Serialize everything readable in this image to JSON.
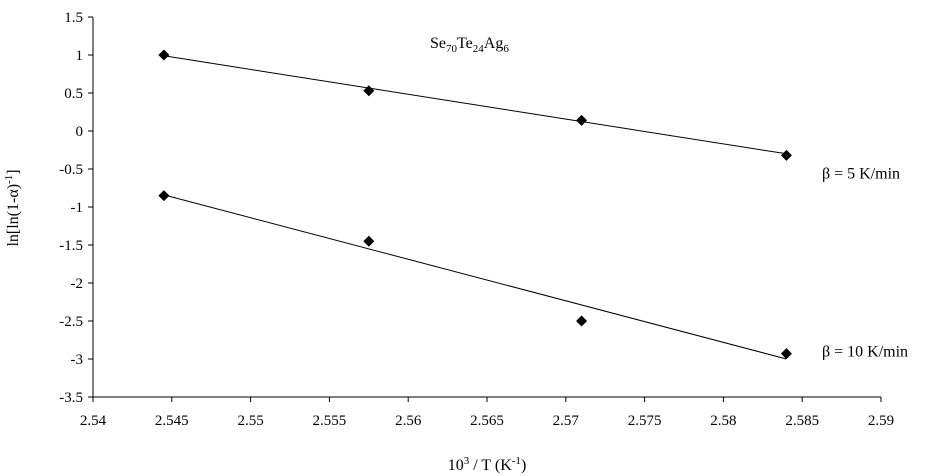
{
  "chart_data": {
    "type": "scatter",
    "title": {
      "base": [
        "Se",
        "Te",
        "Ag"
      ],
      "sub": [
        "70",
        "24",
        "6"
      ]
    },
    "xlabel": {
      "pre": "10",
      "sup1": "3",
      "mid": " / T (K",
      "sup2": "-1",
      "post": ")"
    },
    "ylabel": {
      "pre": "ln[ln(1-α)",
      "sup": "-1",
      "post": "]"
    },
    "xlim": [
      2.54,
      2.59
    ],
    "ylim": [
      -3.5,
      1.5
    ],
    "x_ticks": [
      "2.54",
      "2.545",
      "2.55",
      "2.555",
      "2.56",
      "2.565",
      "2.57",
      "2.575",
      "2.58",
      "2.585",
      "2.59"
    ],
    "y_ticks": [
      "1.5",
      "1",
      "0.5",
      "0",
      "-0.5",
      "-1",
      "-1.5",
      "-2",
      "-2.5",
      "-3",
      "-3.5"
    ],
    "grid": false,
    "series": [
      {
        "name": "β = 5 K/min",
        "x": [
          2.5445,
          2.5575,
          2.571,
          2.584
        ],
        "y": [
          1.0,
          0.53,
          0.14,
          -0.32
        ],
        "fit": {
          "x": [
            2.5445,
            2.584
          ],
          "y": [
            0.99,
            -0.3
          ]
        }
      },
      {
        "name": "β = 10 K/min",
        "x": [
          2.5445,
          2.5575,
          2.571,
          2.584
        ],
        "y": [
          -0.85,
          -1.45,
          -2.5,
          -2.93
        ],
        "fit": {
          "x": [
            2.5445,
            2.584
          ],
          "y": [
            -0.84,
            -3.0
          ]
        }
      }
    ],
    "marker": "diamond",
    "color": "#000000"
  }
}
